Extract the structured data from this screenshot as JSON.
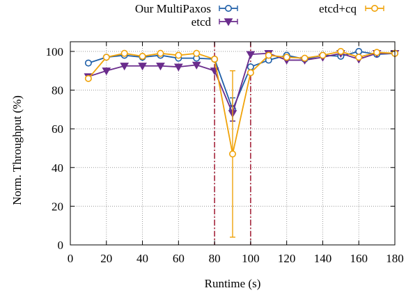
{
  "chart_data": {
    "type": "line",
    "title": "",
    "xlabel": "Runtime (s)",
    "ylabel": "Norm. Throughput (%)",
    "xlim": [
      0,
      180
    ],
    "ylim": [
      0,
      105
    ],
    "xticks": [
      0,
      20,
      40,
      60,
      80,
      100,
      120,
      140,
      160,
      180
    ],
    "yticks": [
      0,
      20,
      40,
      60,
      80,
      100
    ],
    "grid": true,
    "legend_position": "top",
    "vertical_markers": [
      80,
      100
    ],
    "x": [
      10,
      20,
      30,
      40,
      50,
      60,
      70,
      80,
      90,
      100,
      110,
      120,
      130,
      140,
      150,
      160,
      170,
      180
    ],
    "series": [
      {
        "name": "Our MultiPaxos",
        "color": "#1f5fa8",
        "marker": "circle",
        "values": [
          94,
          97,
          98,
          97,
          98,
          96.5,
          96.5,
          96,
          70,
          92,
          95.5,
          98,
          96,
          98,
          97.5,
          100,
          98.5,
          99
        ],
        "err": [
          0,
          0,
          0,
          0,
          0,
          0,
          0,
          0,
          6,
          0,
          0,
          0,
          0,
          0,
          0,
          0,
          0,
          0
        ]
      },
      {
        "name": "etcd",
        "color": "#6a2c8c",
        "marker": "triangle-down",
        "values": [
          87,
          90,
          92.5,
          92.5,
          92.5,
          92,
          93,
          90,
          68,
          98.5,
          99,
          95.5,
          95.5,
          97,
          99,
          96,
          99,
          99
        ],
        "err": [
          0,
          0,
          0,
          0,
          0,
          0,
          0,
          0,
          4,
          0,
          0,
          0,
          0,
          0,
          0,
          0,
          0,
          0
        ]
      },
      {
        "name": "etcd+cq",
        "color": "#f0a30a",
        "marker": "circle",
        "values": [
          86,
          97,
          99,
          97.5,
          99,
          98,
          99,
          96,
          47,
          89,
          98,
          97,
          96.5,
          98,
          100,
          97,
          99.5,
          99
        ],
        "err": [
          0,
          0,
          0,
          0,
          0,
          0,
          0,
          0,
          43,
          0,
          0,
          0,
          0,
          0,
          0,
          0,
          0,
          0
        ]
      }
    ]
  }
}
